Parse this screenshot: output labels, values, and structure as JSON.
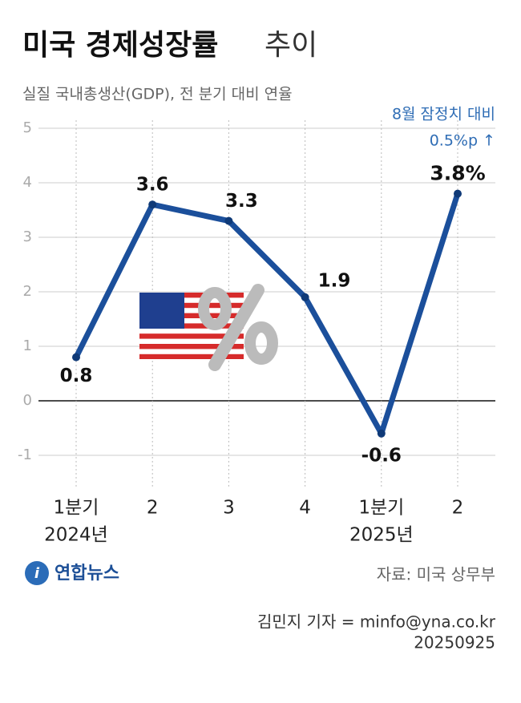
{
  "chart_data": {
    "type": "line",
    "title": "미국 경제성장률",
    "title_suffix": "추이",
    "subtitle": "실질 국내총생산(GDP), 전 분기 대비 연율",
    "annotation": [
      "8월 잠정치 대비",
      "0.5%p ↑"
    ],
    "categories": [
      "1분기",
      "2",
      "3",
      "4",
      "1분기",
      "2"
    ],
    "year_labels": [
      "2024년",
      null,
      null,
      null,
      "2025년",
      null
    ],
    "series": [
      {
        "color": "#1b4f9b",
        "values": [
          0.8,
          3.6,
          3.3,
          1.9,
          -0.6,
          3.8
        ],
        "value_labels": [
          "0.8",
          "3.6",
          "3.3",
          "1.9",
          "-0.6",
          "3.8%"
        ]
      }
    ],
    "ylim": [
      -1.5,
      5
    ],
    "yticks": [
      -1,
      0,
      1,
      2,
      3,
      4,
      5
    ],
    "grid": true,
    "source": "자료: 미국 상무부",
    "logo": "연합뉴스",
    "byline": "김민지 기자 = minfo@yna.co.kr",
    "date": "20250925"
  }
}
